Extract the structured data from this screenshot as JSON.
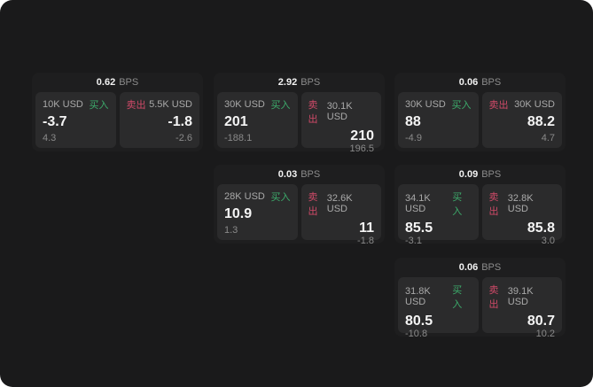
{
  "labels": {
    "bps_unit": "BPS",
    "buy": "买入",
    "sell": "卖出"
  },
  "colors": {
    "app_bg": "#1a1a1b",
    "card_bg": "#1e1e1f",
    "panel_bg": "#2b2b2c",
    "buy_green": "#3cab6b",
    "sell_red": "#d04a68"
  },
  "cards": [
    {
      "bps": "0.62",
      "buy": {
        "size": "10K USD",
        "price": "-3.7",
        "sub": "4.3"
      },
      "sell": {
        "size": "5.5K USD",
        "price": "-1.8",
        "sub": "-2.6"
      }
    },
    {
      "bps": "2.92",
      "buy": {
        "size": "30K USD",
        "price": "201",
        "sub": "-188.1"
      },
      "sell": {
        "size": "30.1K USD",
        "price": "210",
        "sub": "196.5"
      }
    },
    {
      "bps": "0.06",
      "buy": {
        "size": "30K USD",
        "price": "88",
        "sub": "-4.9"
      },
      "sell": {
        "size": "30K USD",
        "price": "88.2",
        "sub": "4.7"
      }
    },
    {
      "bps": "0.03",
      "buy": {
        "size": "28K USD",
        "price": "10.9",
        "sub": "1.3"
      },
      "sell": {
        "size": "32.6K USD",
        "price": "11",
        "sub": "-1.8"
      }
    },
    {
      "bps": "0.09",
      "buy": {
        "size": "34.1K USD",
        "price": "85.5",
        "sub": "-3.1"
      },
      "sell": {
        "size": "32.8K USD",
        "price": "85.8",
        "sub": "3.0"
      }
    },
    {
      "bps": "0.06",
      "buy": {
        "size": "31.8K USD",
        "price": "80.5",
        "sub": "-10.8"
      },
      "sell": {
        "size": "39.1K USD",
        "price": "80.7",
        "sub": "10.2"
      }
    }
  ]
}
